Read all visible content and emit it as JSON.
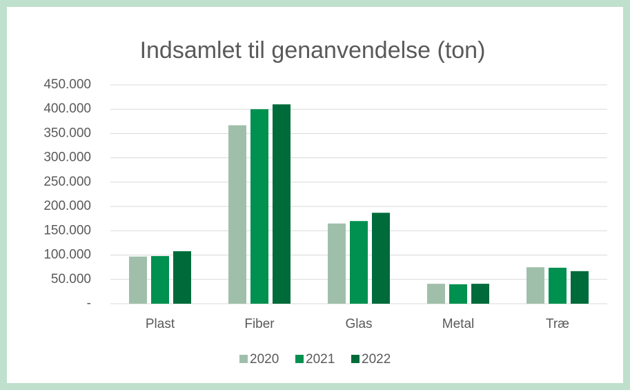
{
  "chart_data": {
    "type": "bar",
    "title": "Indsamlet til genanvendelse (ton)",
    "categories": [
      "Plast",
      "Fiber",
      "Glas",
      "Metal",
      "Træ"
    ],
    "series": [
      {
        "name": "2020",
        "color": "#a0bfab",
        "values": [
          97000,
          367000,
          165000,
          41000,
          75000
        ]
      },
      {
        "name": "2021",
        "color": "#00904f",
        "values": [
          98000,
          400000,
          170000,
          40000,
          74000
        ]
      },
      {
        "name": "2022",
        "color": "#006b3a",
        "values": [
          108000,
          410000,
          187000,
          41000,
          67000
        ]
      }
    ],
    "ylim": [
      0,
      450000
    ],
    "yticks": [
      {
        "value": 0,
        "label": "-"
      },
      {
        "value": 50000,
        "label": "50.000"
      },
      {
        "value": 100000,
        "label": "100.000"
      },
      {
        "value": 150000,
        "label": "150.000"
      },
      {
        "value": 200000,
        "label": "200.000"
      },
      {
        "value": 250000,
        "label": "250.000"
      },
      {
        "value": 300000,
        "label": "300.000"
      },
      {
        "value": 350000,
        "label": "350.000"
      },
      {
        "value": 400000,
        "label": "400.000"
      },
      {
        "value": 450000,
        "label": "450.000"
      }
    ],
    "grid": true,
    "legend": "bottom"
  }
}
